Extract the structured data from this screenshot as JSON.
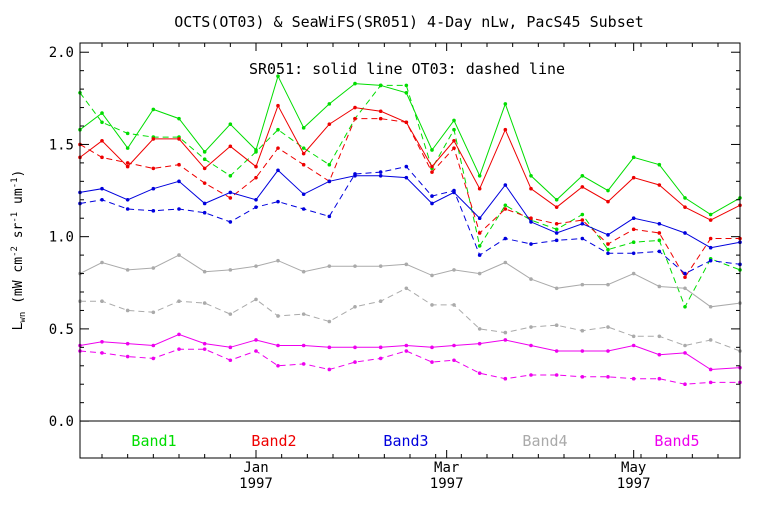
{
  "chart_data": {
    "type": "line",
    "title": "OCTS(OT03) & SeaWiFS(SR051) 4-Day nLw, PacS45 Subset",
    "annotation": "SR051: solid line    OT03: dashed line",
    "xlabel": "",
    "ylabel": "L_wn (mW cm^-2 sr^-1 um^-1)",
    "ylabel_parts": {
      "main": "L",
      "sub": "wn",
      "unit_open": " (mW cm",
      "exp1": "-2",
      "unit_mid": " sr",
      "exp2": "-1",
      "unit_mid2": " um",
      "exp3": "-1",
      "unit_close": ")"
    },
    "ylim": [
      -0.2,
      2.05
    ],
    "yticks": [
      "0.0",
      "0.5",
      "1.0",
      "1.5",
      "2.0"
    ],
    "ytick_values": [
      0.0,
      0.5,
      1.0,
      1.5,
      2.0
    ],
    "x_days_range": [
      0,
      180
    ],
    "xticks": [
      {
        "day": 48,
        "label": "Jan",
        "year": "1997"
      },
      {
        "day": 100,
        "label": "Mar",
        "year": "1997"
      },
      {
        "day": 151,
        "label": "May",
        "year": "1997"
      }
    ],
    "line_styles": {
      "solid": "SR051",
      "dashed": "OT03"
    },
    "grid": false,
    "legend_position": "bottom",
    "series": [
      {
        "name": "Band1",
        "color": "#00dd00",
        "solid_x": [
          0,
          6,
          13,
          20,
          27,
          34,
          41,
          48,
          54,
          61,
          68,
          75,
          82,
          89,
          96,
          102,
          109,
          116,
          123,
          130,
          137,
          144,
          151,
          158,
          165,
          172,
          180
        ],
        "solid_y": [
          1.58,
          1.67,
          1.48,
          1.69,
          1.64,
          1.46,
          1.61,
          1.47,
          1.87,
          1.59,
          1.72,
          1.83,
          1.82,
          1.78,
          1.47,
          1.63,
          1.33,
          1.72,
          1.33,
          1.2,
          1.33,
          1.25,
          1.43,
          1.39,
          1.21,
          1.12,
          1.21
        ],
        "dashed_x": [
          0,
          6,
          13,
          20,
          27,
          34,
          41,
          48,
          54,
          61,
          68,
          75,
          82,
          89,
          96,
          102,
          109,
          116,
          123,
          130,
          137,
          144,
          151,
          158,
          165,
          172,
          180
        ],
        "dashed_y": [
          1.78,
          1.62,
          1.56,
          1.54,
          1.54,
          1.42,
          1.33,
          1.46,
          1.58,
          1.48,
          1.39,
          1.64,
          1.82,
          1.82,
          1.37,
          1.58,
          0.95,
          1.17,
          1.09,
          1.04,
          1.12,
          0.93,
          0.97,
          0.98,
          0.62,
          0.88,
          0.82
        ]
      },
      {
        "name": "Band2",
        "color": "#ee0000",
        "solid_x": [
          0,
          6,
          13,
          20,
          27,
          34,
          41,
          48,
          54,
          61,
          68,
          75,
          82,
          89,
          96,
          102,
          109,
          116,
          123,
          130,
          137,
          144,
          151,
          158,
          165,
          172,
          180
        ],
        "solid_y": [
          1.43,
          1.52,
          1.38,
          1.53,
          1.53,
          1.37,
          1.49,
          1.38,
          1.71,
          1.45,
          1.61,
          1.7,
          1.68,
          1.62,
          1.38,
          1.52,
          1.26,
          1.58,
          1.26,
          1.16,
          1.27,
          1.19,
          1.32,
          1.28,
          1.16,
          1.09,
          1.17
        ],
        "dashed_x": [
          0,
          6,
          13,
          20,
          27,
          34,
          41,
          48,
          54,
          61,
          68,
          75,
          82,
          89,
          96,
          102,
          109,
          116,
          123,
          130,
          137,
          144,
          151,
          158,
          165,
          172,
          180
        ],
        "dashed_y": [
          1.5,
          1.43,
          1.4,
          1.37,
          1.39,
          1.29,
          1.21,
          1.32,
          1.48,
          1.39,
          1.3,
          1.64,
          1.64,
          1.62,
          1.35,
          1.48,
          1.02,
          1.15,
          1.1,
          1.07,
          1.09,
          0.96,
          1.04,
          1.02,
          0.78,
          0.99,
          0.99
        ]
      },
      {
        "name": "Band3",
        "color": "#0000dd",
        "solid_x": [
          0,
          6,
          13,
          20,
          27,
          34,
          41,
          48,
          54,
          61,
          68,
          75,
          82,
          89,
          96,
          102,
          109,
          116,
          123,
          130,
          137,
          144,
          151,
          158,
          165,
          172,
          180
        ],
        "solid_y": [
          1.24,
          1.26,
          1.2,
          1.26,
          1.3,
          1.18,
          1.24,
          1.2,
          1.36,
          1.23,
          1.3,
          1.33,
          1.33,
          1.32,
          1.18,
          1.24,
          1.1,
          1.28,
          1.08,
          1.02,
          1.07,
          1.01,
          1.1,
          1.07,
          1.02,
          0.94,
          0.97
        ],
        "dashed_x": [
          0,
          6,
          13,
          20,
          27,
          34,
          41,
          48,
          54,
          61,
          68,
          75,
          82,
          89,
          96,
          102,
          109,
          116,
          123,
          130,
          137,
          144,
          151,
          158,
          165,
          172,
          180
        ],
        "dashed_y": [
          1.18,
          1.2,
          1.15,
          1.14,
          1.15,
          1.13,
          1.08,
          1.16,
          1.19,
          1.15,
          1.11,
          1.34,
          1.35,
          1.38,
          1.22,
          1.25,
          0.9,
          0.99,
          0.96,
          0.98,
          0.99,
          0.91,
          0.91,
          0.92,
          0.8,
          0.87,
          0.85
        ]
      },
      {
        "name": "Band4",
        "color": "#aaaaaa",
        "solid_x": [
          0,
          6,
          13,
          20,
          27,
          34,
          41,
          48,
          54,
          61,
          68,
          75,
          82,
          89,
          96,
          102,
          109,
          116,
          123,
          130,
          137,
          144,
          151,
          158,
          165,
          172,
          180
        ],
        "solid_y": [
          0.8,
          0.86,
          0.82,
          0.83,
          0.9,
          0.81,
          0.82,
          0.84,
          0.87,
          0.81,
          0.84,
          0.84,
          0.84,
          0.85,
          0.79,
          0.82,
          0.8,
          0.86,
          0.77,
          0.72,
          0.74,
          0.74,
          0.8,
          0.73,
          0.72,
          0.62,
          0.64
        ],
        "dashed_x": [
          0,
          6,
          13,
          20,
          27,
          34,
          41,
          48,
          54,
          61,
          68,
          75,
          82,
          89,
          96,
          102,
          109,
          116,
          123,
          130,
          137,
          144,
          151,
          158,
          165,
          172,
          180
        ],
        "dashed_y": [
          0.65,
          0.65,
          0.6,
          0.59,
          0.65,
          0.64,
          0.58,
          0.66,
          0.57,
          0.58,
          0.54,
          0.62,
          0.65,
          0.72,
          0.63,
          0.63,
          0.5,
          0.48,
          0.51,
          0.52,
          0.49,
          0.51,
          0.46,
          0.46,
          0.41,
          0.44,
          0.38
        ]
      },
      {
        "name": "Band5",
        "color": "#ee00ee",
        "solid_x": [
          0,
          6,
          13,
          20,
          27,
          34,
          41,
          48,
          54,
          61,
          68,
          75,
          82,
          89,
          96,
          102,
          109,
          116,
          123,
          130,
          137,
          144,
          151,
          158,
          165,
          172,
          180
        ],
        "solid_y": [
          0.41,
          0.43,
          0.42,
          0.41,
          0.47,
          0.42,
          0.4,
          0.44,
          0.41,
          0.41,
          0.4,
          0.4,
          0.4,
          0.41,
          0.4,
          0.41,
          0.42,
          0.44,
          0.41,
          0.38,
          0.38,
          0.38,
          0.41,
          0.36,
          0.37,
          0.28,
          0.29
        ],
        "dashed_x": [
          0,
          6,
          13,
          20,
          27,
          34,
          41,
          48,
          54,
          61,
          68,
          75,
          82,
          89,
          96,
          102,
          109,
          116,
          123,
          130,
          137,
          144,
          151,
          158,
          165,
          172,
          180
        ],
        "dashed_y": [
          0.38,
          0.37,
          0.35,
          0.34,
          0.39,
          0.39,
          0.33,
          0.38,
          0.3,
          0.31,
          0.28,
          0.32,
          0.34,
          0.38,
          0.32,
          0.33,
          0.26,
          0.23,
          0.25,
          0.25,
          0.24,
          0.24,
          0.23,
          0.23,
          0.2,
          0.21,
          0.21
        ]
      }
    ]
  }
}
